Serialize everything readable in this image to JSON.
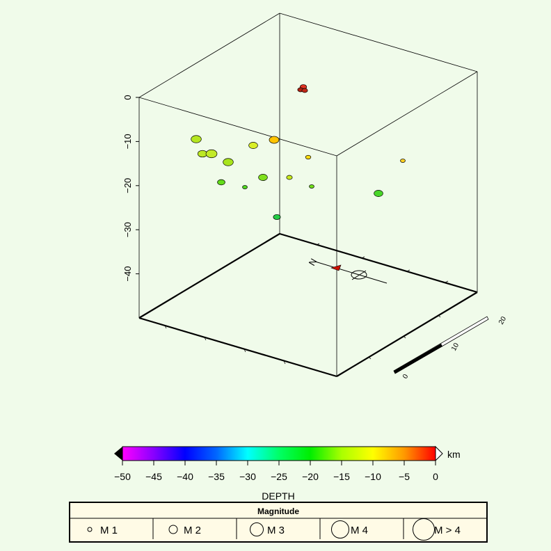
{
  "background": "#f0fbea",
  "chart_data": {
    "type": "scatter",
    "projection": "3d-box",
    "axes": {
      "z": {
        "ticks": [
          0,
          -10,
          -20,
          -30,
          -40
        ],
        "labels": [
          "0",
          "−10",
          "−20",
          "−30",
          "−40"
        ],
        "range": [
          -50,
          0
        ]
      }
    },
    "points": [
      {
        "depth": -1,
        "mag": 2.0,
        "color": "#e03322"
      },
      {
        "depth": -0.5,
        "mag": 1.8,
        "color": "#b02212"
      },
      {
        "depth": -0.8,
        "mag": 1.8,
        "color": "#c02818"
      },
      {
        "depth": -10,
        "mag": 2.8,
        "color": "#b5e620"
      },
      {
        "depth": -13,
        "mag": 2.6,
        "color": "#bce824"
      },
      {
        "depth": -13,
        "mag": 3.0,
        "color": "#c2ea28"
      },
      {
        "depth": -15,
        "mag": 2.8,
        "color": "#a8e41c"
      },
      {
        "depth": -10,
        "mag": 2.5,
        "color": "#d9ee28"
      },
      {
        "depth": -10,
        "mag": 2.7,
        "color": "#ffc400"
      },
      {
        "depth": -14,
        "mag": 1.7,
        "color": "#ffdd10"
      },
      {
        "depth": -19,
        "mag": 2.2,
        "color": "#63dd1a"
      },
      {
        "depth": -20,
        "mag": 1.6,
        "color": "#50d820"
      },
      {
        "depth": -18,
        "mag": 2.5,
        "color": "#7fe01c"
      },
      {
        "depth": -18,
        "mag": 1.8,
        "color": "#c8ea1e"
      },
      {
        "depth": -20,
        "mag": 1.6,
        "color": "#70de1a"
      },
      {
        "depth": -14,
        "mag": 1.6,
        "color": "#ffd020"
      },
      {
        "depth": -22,
        "mag": 2.5,
        "color": "#48d628"
      },
      {
        "depth": -27,
        "mag": 2.1,
        "color": "#22cc44"
      }
    ],
    "colorbar": {
      "title": "DEPTH",
      "unit": "km",
      "ticks": [
        -50,
        -45,
        -40,
        -35,
        -30,
        -25,
        -20,
        -15,
        -10,
        -5,
        0
      ],
      "tick_labels": [
        "−50",
        "−45",
        "−40",
        "−35",
        "−30",
        "−25",
        "−20",
        "−15",
        "−10",
        "−5",
        "0"
      ],
      "colors": [
        "#ff00ff",
        "#8800ff",
        "#0000ff",
        "#0066ff",
        "#00ffff",
        "#00ff66",
        "#00ee00",
        "#aaff00",
        "#ffff00",
        "#ff9900",
        "#ff0000"
      ]
    },
    "legend": {
      "title": "Magnitude",
      "items": [
        {
          "label": "M 1",
          "mag": 1
        },
        {
          "label": "M 2",
          "mag": 2
        },
        {
          "label": "M 3",
          "mag": 3
        },
        {
          "label": "M 4",
          "mag": 4
        },
        {
          "label": "M > 4",
          "mag": 5
        }
      ]
    },
    "scale_bar": {
      "labels": [
        "0",
        "10",
        "20"
      ]
    },
    "north_arrow": {
      "label": "N"
    }
  }
}
